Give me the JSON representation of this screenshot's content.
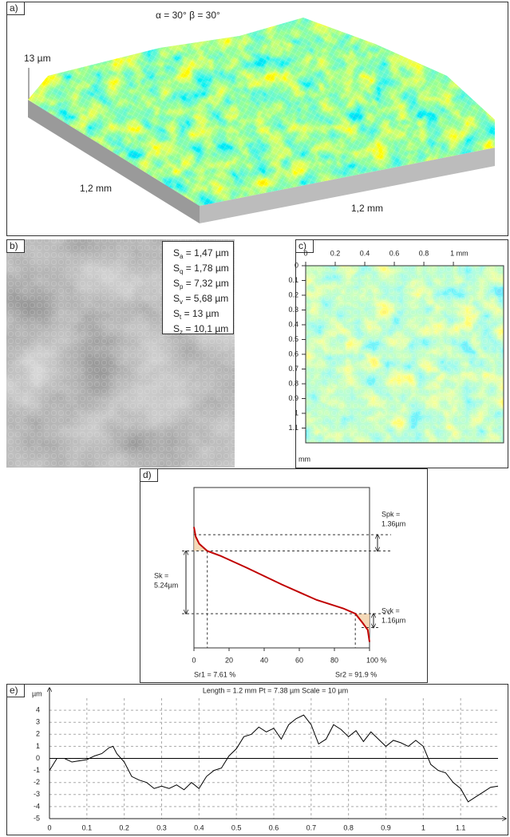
{
  "panels": {
    "a": {
      "label": "a)",
      "angles": "α = 30° β = 30°",
      "z_scale": "13 µm",
      "x_size": "1,2 mm",
      "y_size": "1,2 mm"
    },
    "b": {
      "label": "b)",
      "parameters": [
        {
          "symbol": "S",
          "sub": "a",
          "text": " = 1,47 µm"
        },
        {
          "symbol": "S",
          "sub": "q",
          "text": " = 1,78 µm"
        },
        {
          "symbol": "S",
          "sub": "p",
          "text": " = 7,32 µm"
        },
        {
          "symbol": "S",
          "sub": "v",
          "text": " = 5,68 µm"
        },
        {
          "symbol": "S",
          "sub": "t",
          "text": " = 13 µm"
        },
        {
          "symbol": "S",
          "sub": "z",
          "text": " = 10,1 µm"
        }
      ]
    },
    "c": {
      "label": "c)",
      "x_unit": "mm",
      "xlim": [
        0,
        1.34
      ],
      "ylim": [
        0,
        1.2
      ],
      "xticks": [
        0,
        0.2,
        0.4,
        0.6,
        0.8,
        {
          "value": 1,
          "label": "1 mm"
        }
      ],
      "yticks": [
        0,
        0.1,
        0.2,
        0.3,
        0.4,
        0.5,
        0.6,
        0.7,
        0.8,
        0.9,
        1,
        1.1
      ]
    }
  },
  "chart_data": [
    {
      "type": "abbott",
      "label": "d)",
      "color": "#c00000",
      "x": [
        0,
        1,
        3,
        7.61,
        15,
        30,
        50,
        70,
        85,
        91.9,
        96,
        99,
        100
      ],
      "values": [
        10.1,
        9.3,
        8.7,
        8.1,
        7.7,
        6.7,
        5.3,
        4.0,
        3.3,
        2.86,
        2.1,
        1.5,
        0.5
      ],
      "xlim": [
        0,
        100
      ],
      "ylim": [
        0,
        13.4
      ],
      "xticks": [
        0,
        20,
        40,
        60,
        80,
        {
          "value": 100,
          "label": "100 %"
        }
      ],
      "spk": {
        "value": 1.36,
        "label": [
          "Spk =",
          "1.36µm"
        ]
      },
      "sk": {
        "value": 5.24,
        "label": [
          "Sk =",
          "5.24µm"
        ]
      },
      "svk": {
        "value": 1.16,
        "label": [
          "Svk =",
          "1.16µm"
        ]
      },
      "sr1": {
        "value": 7.61,
        "label": "Sr1 = 7.61 %"
      },
      "sr2": {
        "value": 91.9,
        "label": "Sr2 = 91.9 %"
      }
    },
    {
      "type": "line",
      "label": "e)",
      "title": "Length = 1.2 mm  Pt = 7.38 µm  Scale = 10 µm",
      "y_unit": "µm",
      "color": "#000000",
      "grid": true,
      "x": [
        0,
        0.02,
        0.04,
        0.06,
        0.08,
        0.1,
        0.12,
        0.14,
        0.16,
        0.17,
        0.18,
        0.2,
        0.22,
        0.24,
        0.26,
        0.28,
        0.3,
        0.32,
        0.34,
        0.36,
        0.38,
        0.4,
        0.42,
        0.44,
        0.46,
        0.48,
        0.5,
        0.52,
        0.54,
        0.56,
        0.58,
        0.6,
        0.62,
        0.64,
        0.66,
        0.68,
        0.7,
        0.72,
        0.74,
        0.76,
        0.78,
        0.8,
        0.82,
        0.84,
        0.86,
        0.88,
        0.9,
        0.92,
        0.94,
        0.96,
        0.98,
        1.0,
        1.02,
        1.04,
        1.06,
        1.08,
        1.1,
        1.12,
        1.14,
        1.16,
        1.18,
        1.2
      ],
      "values": [
        -1,
        0,
        0,
        -0.3,
        -0.2,
        -0.1,
        0.2,
        0.4,
        0.9,
        1.0,
        0.4,
        -0.3,
        -1.5,
        -1.8,
        -2.0,
        -2.5,
        -2.3,
        -2.5,
        -2.2,
        -2.6,
        -2.0,
        -2.5,
        -1.5,
        -1.0,
        -0.8,
        0.2,
        0.8,
        1.8,
        2.0,
        2.6,
        2.2,
        2.5,
        1.6,
        2.8,
        3.3,
        3.6,
        2.8,
        1.2,
        1.6,
        2.8,
        2.4,
        1.8,
        2.3,
        1.4,
        2.2,
        1.6,
        1.0,
        1.5,
        1.3,
        1.0,
        1.5,
        1.0,
        -0.5,
        -1.0,
        -1.2,
        -2.0,
        -2.5,
        -3.6,
        -3.2,
        -2.8,
        -2.4,
        -2.3
      ],
      "xlim": [
        0,
        1.2
      ],
      "ylim": [
        -5,
        5
      ],
      "xticks": [
        0,
        0.1,
        0.2,
        0.3,
        0.4,
        0.5,
        0.6,
        0.7,
        0.8,
        0.9,
        1,
        1.1
      ],
      "yticks": [
        -5,
        -4,
        -3,
        -2,
        -1,
        0,
        1,
        2,
        3,
        4
      ]
    }
  ]
}
